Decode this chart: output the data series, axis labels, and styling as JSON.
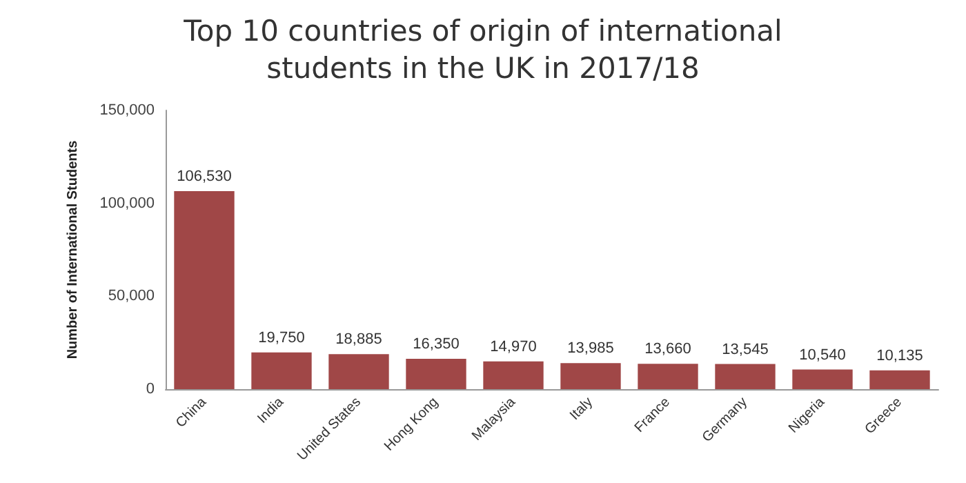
{
  "chart_data": {
    "type": "bar",
    "title": "Top 10 countries of origin of international\nstudents in the UK in 2017/18",
    "ylabel": "Number of International Students",
    "categories": [
      "China",
      "India",
      "United States",
      "Hong Kong",
      "Malaysia",
      "Italy",
      "France",
      "Germany",
      "Nigeria",
      "Greece"
    ],
    "values": [
      106530,
      19750,
      18885,
      16350,
      14970,
      13985,
      13660,
      13545,
      10540,
      10135
    ],
    "color": "#a04747",
    "value_labels": [
      "106,530",
      "19,750",
      "18,885",
      "16,350",
      "14,970",
      "13,985",
      "13,660",
      "13,545",
      "10,540",
      "10,135"
    ],
    "ylim": [
      0,
      150000
    ],
    "yticks": [
      0,
      {
        "value": 50000,
        "label": "50,000"
      },
      {
        "value": 100000,
        "label": "100,000"
      },
      {
        "value": 150000,
        "label": "150,000"
      }
    ],
    "grid": false
  }
}
